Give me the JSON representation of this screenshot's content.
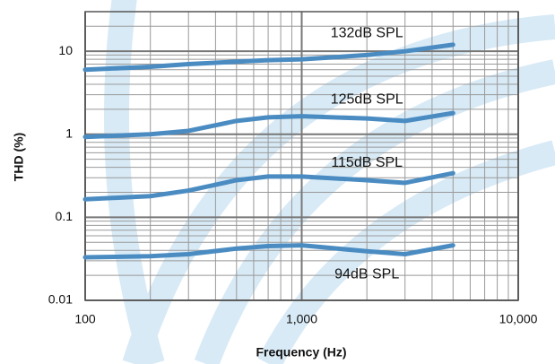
{
  "chart_data": {
    "type": "line",
    "x_label": "Frequency (Hz)",
    "y_label": "THD (%)",
    "x": [
      100,
      200,
      300,
      500,
      700,
      1000,
      2000,
      3000,
      5000
    ],
    "series": [
      {
        "name": "132dB SPL",
        "color": "#4a8cc2",
        "values": [
          6,
          6.5,
          7,
          7.5,
          7.8,
          8,
          9,
          10,
          12
        ]
      },
      {
        "name": "125dB SPL",
        "color": "#4a8cc2",
        "values": [
          0.93,
          1,
          1.1,
          1.45,
          1.6,
          1.65,
          1.55,
          1.45,
          1.8
        ]
      },
      {
        "name": "115dB SPL",
        "color": "#4a8cc2",
        "values": [
          0.165,
          0.18,
          0.21,
          0.28,
          0.31,
          0.31,
          0.28,
          0.26,
          0.34
        ]
      },
      {
        "name": "94dB SPL",
        "color": "#4a8cc2",
        "values": [
          0.033,
          0.034,
          0.036,
          0.042,
          0.045,
          0.046,
          0.039,
          0.036,
          0.046
        ]
      }
    ],
    "xlim": [
      100,
      10000
    ],
    "ylim": [
      0.01,
      30
    ],
    "xticks": [
      100,
      {
        "value": 1000,
        "label": "1,000"
      },
      {
        "value": 10000,
        "label": "10,000"
      }
    ],
    "yticks": [
      0.01,
      0.1,
      1,
      10
    ],
    "xscale": "log",
    "yscale": "log",
    "grid": true,
    "minor_grid": true
  }
}
